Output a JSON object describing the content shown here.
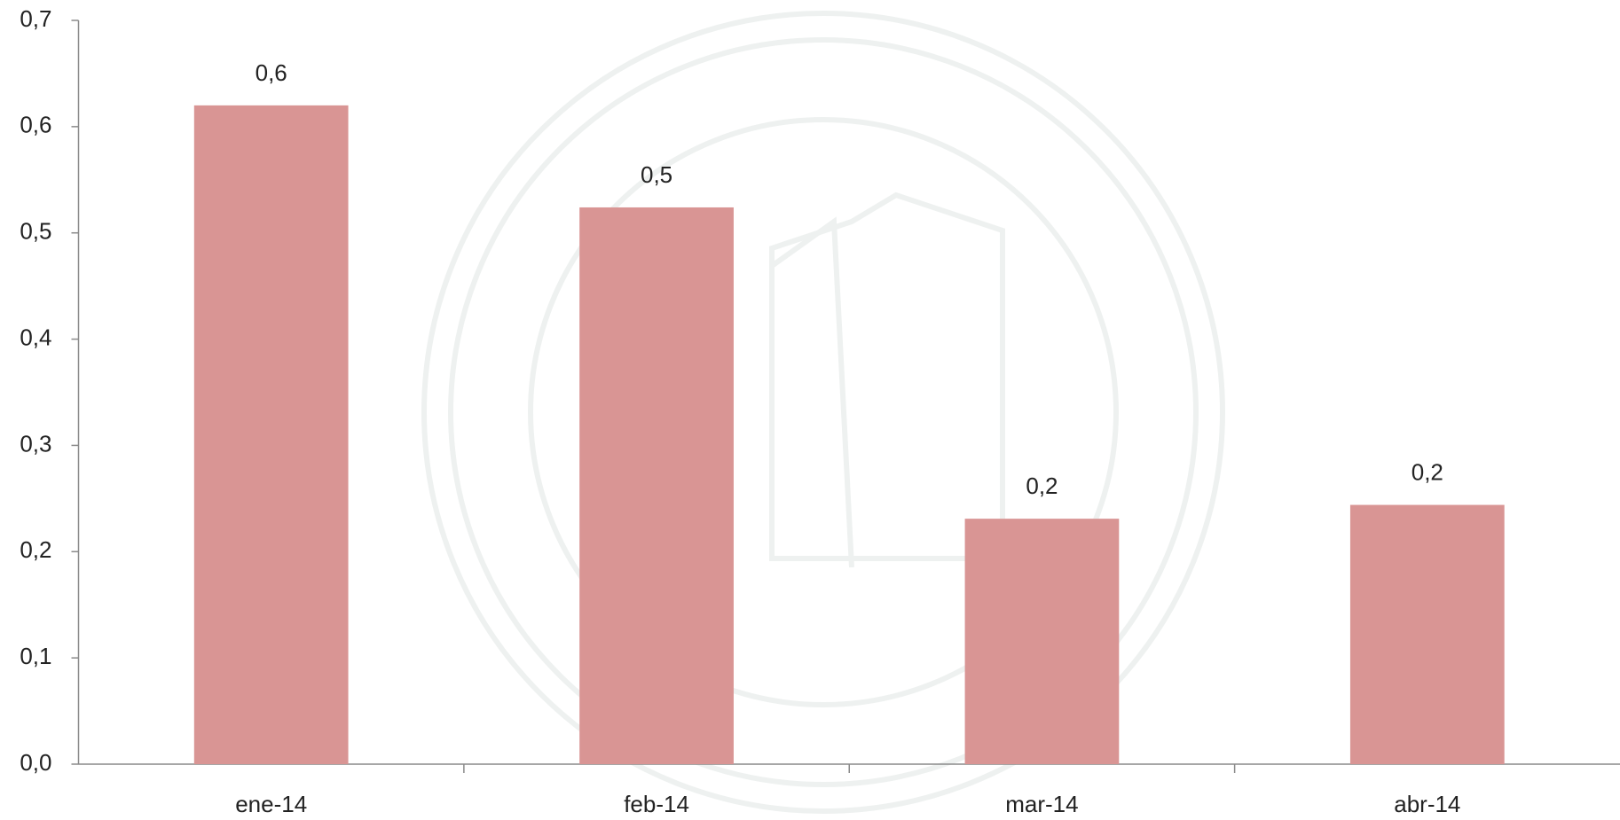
{
  "chart_data": {
    "type": "bar",
    "categories": [
      "ene-14",
      "feb-14",
      "mar-14",
      "abr-14"
    ],
    "values": [
      0.62,
      0.524,
      0.231,
      0.244
    ],
    "value_labels": [
      "0,6",
      "0,5",
      "0,2",
      "0,2"
    ],
    "color": "#d99594",
    "ylim": [
      0,
      0.7
    ],
    "yticks": [
      {
        "value": 0,
        "label": "0,0"
      },
      {
        "value": 0.1,
        "label": "0,1"
      },
      {
        "value": 0.2,
        "label": "0,2"
      },
      {
        "value": 0.3,
        "label": "0,3"
      },
      {
        "value": 0.4,
        "label": "0,4"
      },
      {
        "value": 0.5,
        "label": "0,5"
      },
      {
        "value": 0.6,
        "label": "0,6"
      },
      {
        "value": 0.7,
        "label": "0,7"
      }
    ],
    "grid": false
  }
}
